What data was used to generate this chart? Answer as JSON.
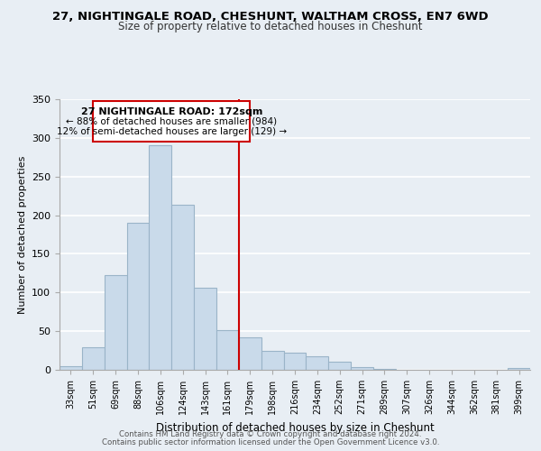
{
  "title_line1": "27, NIGHTINGALE ROAD, CHESHUNT, WALTHAM CROSS, EN7 6WD",
  "title_line2": "Size of property relative to detached houses in Cheshunt",
  "xlabel": "Distribution of detached houses by size in Cheshunt",
  "ylabel": "Number of detached properties",
  "bar_labels": [
    "33sqm",
    "51sqm",
    "69sqm",
    "88sqm",
    "106sqm",
    "124sqm",
    "143sqm",
    "161sqm",
    "179sqm",
    "198sqm",
    "216sqm",
    "234sqm",
    "252sqm",
    "271sqm",
    "289sqm",
    "307sqm",
    "326sqm",
    "344sqm",
    "362sqm",
    "381sqm",
    "399sqm"
  ],
  "bar_values": [
    5,
    29,
    122,
    190,
    291,
    213,
    106,
    51,
    42,
    24,
    22,
    17,
    11,
    3,
    1,
    0,
    0,
    0,
    0,
    0,
    2
  ],
  "bar_color": "#c9daea",
  "bar_edge_color": "#9ab4c8",
  "vline_color": "#cc0000",
  "annotation_title": "27 NIGHTINGALE ROAD: 172sqm",
  "annotation_line1": "← 88% of detached houses are smaller (984)",
  "annotation_line2": "12% of semi-detached houses are larger (129) →",
  "annotation_box_color": "#ffffff",
  "annotation_box_edge": "#cc0000",
  "ylim": [
    0,
    350
  ],
  "yticks": [
    0,
    50,
    100,
    150,
    200,
    250,
    300,
    350
  ],
  "footer1": "Contains HM Land Registry data © Crown copyright and database right 2024.",
  "footer2": "Contains public sector information licensed under the Open Government Licence v3.0.",
  "background_color": "#e8eef4",
  "grid_color": "#ffffff",
  "plot_bg_color": "#e8eef4"
}
